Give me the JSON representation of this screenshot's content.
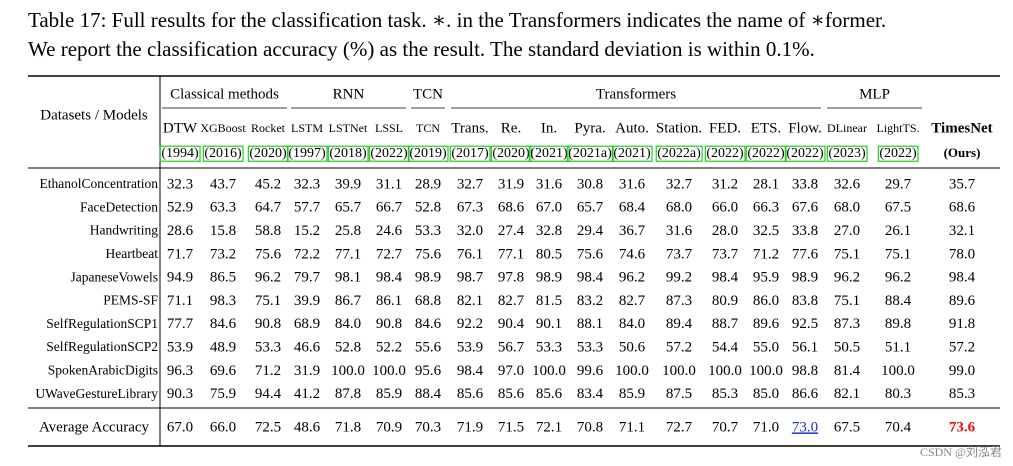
{
  "caption": [
    "Table 17: Full results for the classification task. ∗. in the Transformers indicates the name of ∗former.",
    "We report the classification accuracy (%) as the result. The standard deviation is within 0.1%."
  ],
  "table": {
    "corner": "Datasets / Models",
    "groups": [
      "Classical methods",
      "RNN",
      "TCN",
      "Transformers",
      "MLP"
    ],
    "models": [
      {
        "name": "DTW",
        "year": "(1994)"
      },
      {
        "name": "XGBoost",
        "year": "(2016)"
      },
      {
        "name": "Rocket",
        "year": "(2020)"
      },
      {
        "name": "LSTM",
        "year": "(1997)"
      },
      {
        "name": "LSTNet",
        "year": "(2018)"
      },
      {
        "name": "LSSL",
        "year": "(2022)"
      },
      {
        "name": "TCN",
        "year": "(2019)"
      },
      {
        "name": "Trans.",
        "year": "(2017)"
      },
      {
        "name": "Re.",
        "year": "(2020)"
      },
      {
        "name": "In.",
        "year": "(2021)"
      },
      {
        "name": "Pyra.",
        "year": "(2021a)"
      },
      {
        "name": "Auto.",
        "year": "(2021)"
      },
      {
        "name": "Station.",
        "year": "(2022a)"
      },
      {
        "name": "FED.",
        "year": "(2022)"
      },
      {
        "name": "ETS.",
        "year": "(2022)"
      },
      {
        "name": "Flow.",
        "year": "(2022)"
      },
      {
        "name": "DLinear",
        "year": "(2023)"
      },
      {
        "name": "LightTS.",
        "year": "(2022)"
      },
      {
        "name": "TimesNet",
        "year": "(Ours)"
      }
    ],
    "rows": [
      {
        "dataset": "EthanolConcentration",
        "values": [
          "32.3",
          "43.7",
          "45.2",
          "32.3",
          "39.9",
          "31.1",
          "28.9",
          "32.7",
          "31.9",
          "31.6",
          "30.8",
          "31.6",
          "32.7",
          "31.2",
          "28.1",
          "33.8",
          "32.6",
          "29.7",
          "35.7"
        ]
      },
      {
        "dataset": "FaceDetection",
        "values": [
          "52.9",
          "63.3",
          "64.7",
          "57.7",
          "65.7",
          "66.7",
          "52.8",
          "67.3",
          "68.6",
          "67.0",
          "65.7",
          "68.4",
          "68.0",
          "66.0",
          "66.3",
          "67.6",
          "68.0",
          "67.5",
          "68.6"
        ]
      },
      {
        "dataset": "Handwriting",
        "values": [
          "28.6",
          "15.8",
          "58.8",
          "15.2",
          "25.8",
          "24.6",
          "53.3",
          "32.0",
          "27.4",
          "32.8",
          "29.4",
          "36.7",
          "31.6",
          "28.0",
          "32.5",
          "33.8",
          "27.0",
          "26.1",
          "32.1"
        ]
      },
      {
        "dataset": "Heartbeat",
        "values": [
          "71.7",
          "73.2",
          "75.6",
          "72.2",
          "77.1",
          "72.7",
          "75.6",
          "76.1",
          "77.1",
          "80.5",
          "75.6",
          "74.6",
          "73.7",
          "73.7",
          "71.2",
          "77.6",
          "75.1",
          "75.1",
          "78.0"
        ]
      },
      {
        "dataset": "JapaneseVowels",
        "values": [
          "94.9",
          "86.5",
          "96.2",
          "79.7",
          "98.1",
          "98.4",
          "98.9",
          "98.7",
          "97.8",
          "98.9",
          "98.4",
          "96.2",
          "99.2",
          "98.4",
          "95.9",
          "98.9",
          "96.2",
          "96.2",
          "98.4"
        ]
      },
      {
        "dataset": "PEMS-SF",
        "values": [
          "71.1",
          "98.3",
          "75.1",
          "39.9",
          "86.7",
          "86.1",
          "68.8",
          "82.1",
          "82.7",
          "81.5",
          "83.2",
          "82.7",
          "87.3",
          "80.9",
          "86.0",
          "83.8",
          "75.1",
          "88.4",
          "89.6"
        ]
      },
      {
        "dataset": "SelfRegulationSCP1",
        "values": [
          "77.7",
          "84.6",
          "90.8",
          "68.9",
          "84.0",
          "90.8",
          "84.6",
          "92.2",
          "90.4",
          "90.1",
          "88.1",
          "84.0",
          "89.4",
          "88.7",
          "89.6",
          "92.5",
          "87.3",
          "89.8",
          "91.8"
        ]
      },
      {
        "dataset": "SelfRegulationSCP2",
        "values": [
          "53.9",
          "48.9",
          "53.3",
          "46.6",
          "52.8",
          "52.2",
          "55.6",
          "53.9",
          "56.7",
          "53.3",
          "53.3",
          "50.6",
          "57.2",
          "54.4",
          "55.0",
          "56.1",
          "50.5",
          "51.1",
          "57.2"
        ]
      },
      {
        "dataset": "SpokenArabicDigits",
        "values": [
          "96.3",
          "69.6",
          "71.2",
          "31.9",
          "100.0",
          "100.0",
          "95.6",
          "98.4",
          "97.0",
          "100.0",
          "99.6",
          "100.0",
          "100.0",
          "100.0",
          "100.0",
          "98.8",
          "81.4",
          "100.0",
          "99.0"
        ]
      },
      {
        "dataset": "UWaveGestureLibrary",
        "values": [
          "90.3",
          "75.9",
          "94.4",
          "41.2",
          "87.8",
          "85.9",
          "88.4",
          "85.6",
          "85.6",
          "85.6",
          "83.4",
          "85.9",
          "87.5",
          "85.3",
          "85.0",
          "86.6",
          "82.1",
          "80.3",
          "85.3"
        ]
      }
    ],
    "average": {
      "label": "Average Accuracy",
      "values": [
        "67.0",
        "66.0",
        "72.5",
        "48.6",
        "71.8",
        "70.9",
        "70.3",
        "71.9",
        "71.5",
        "72.1",
        "70.8",
        "71.1",
        "72.7",
        "70.7",
        "71.0",
        "73.0",
        "67.5",
        "70.4",
        "73.6"
      ]
    }
  },
  "watermark": "CSDN @刘泓君"
}
